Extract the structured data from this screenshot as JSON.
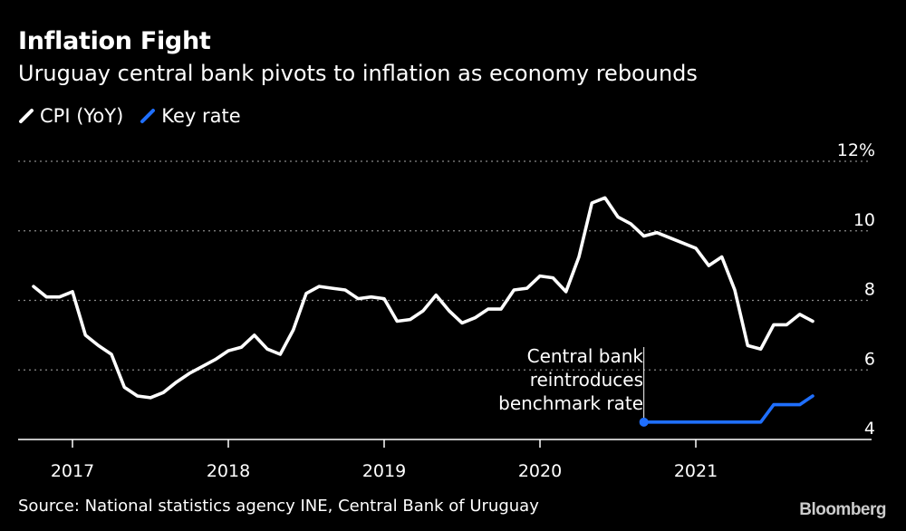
{
  "header": {
    "title": "Inflation Fight",
    "subtitle": "Uruguay central bank pivots to inflation as economy rebounds"
  },
  "legend": [
    {
      "label": "CPI (YoY)",
      "color": "#ffffff"
    },
    {
      "label": "Key rate",
      "color": "#1f6fff"
    }
  ],
  "footer": {
    "source": "Source: National statistics agency INE, Central Bank of Uruguay",
    "brand": "Bloomberg"
  },
  "chart_data": {
    "type": "line",
    "x_ticks": [
      "2017",
      "2018",
      "2019",
      "2020",
      "2021"
    ],
    "y_ticks": [
      "12%",
      "10",
      "8",
      "6",
      "4"
    ],
    "ylim": [
      4,
      12
    ],
    "grid": true,
    "annotation": [
      "Central bank",
      "reintroduces",
      "benchmark rate"
    ],
    "series": [
      {
        "name": "CPI (YoY)",
        "color": "#ffffff",
        "x": [
          "2016-10",
          "2016-11",
          "2016-12",
          "2017-01",
          "2017-02",
          "2017-03",
          "2017-04",
          "2017-05",
          "2017-06",
          "2017-07",
          "2017-08",
          "2017-09",
          "2017-10",
          "2017-11",
          "2017-12",
          "2018-01",
          "2018-02",
          "2018-03",
          "2018-04",
          "2018-05",
          "2018-06",
          "2018-07",
          "2018-08",
          "2018-09",
          "2018-10",
          "2018-11",
          "2018-12",
          "2019-01",
          "2019-02",
          "2019-03",
          "2019-04",
          "2019-05",
          "2019-06",
          "2019-07",
          "2019-08",
          "2019-09",
          "2019-10",
          "2019-11",
          "2019-12",
          "2020-01",
          "2020-02",
          "2020-03",
          "2020-04",
          "2020-05",
          "2020-06",
          "2020-07",
          "2020-08",
          "2020-09",
          "2020-10",
          "2020-11",
          "2020-12",
          "2021-01",
          "2021-02",
          "2021-03",
          "2021-04",
          "2021-05",
          "2021-06",
          "2021-07",
          "2021-08",
          "2021-09",
          "2021-10"
        ],
        "values": [
          8.4,
          8.1,
          8.1,
          8.25,
          7.0,
          6.7,
          6.45,
          5.5,
          5.25,
          5.2,
          5.35,
          5.65,
          5.9,
          6.1,
          6.3,
          6.55,
          6.65,
          7.0,
          6.6,
          6.45,
          7.15,
          8.2,
          8.4,
          8.35,
          8.3,
          8.05,
          8.1,
          8.05,
          7.4,
          7.45,
          7.7,
          8.15,
          7.7,
          7.35,
          7.5,
          7.75,
          7.75,
          8.3,
          8.35,
          8.7,
          8.65,
          8.25,
          9.25,
          10.8,
          10.95,
          10.4,
          10.2,
          9.85,
          9.95,
          9.8,
          9.65,
          9.5,
          9.0,
          9.25,
          8.3,
          6.7,
          6.6,
          7.3,
          7.3,
          7.6,
          7.4
        ]
      },
      {
        "name": "Key rate",
        "color": "#1f6fff",
        "x": [
          "2020-09",
          "2020-10",
          "2020-11",
          "2020-12",
          "2021-01",
          "2021-02",
          "2021-03",
          "2021-04",
          "2021-05",
          "2021-06",
          "2021-07",
          "2021-08",
          "2021-09",
          "2021-10"
        ],
        "values": [
          4.5,
          4.5,
          4.5,
          4.5,
          4.5,
          4.5,
          4.5,
          4.5,
          4.5,
          4.5,
          5.0,
          5.0,
          5.0,
          5.25
        ]
      }
    ]
  }
}
